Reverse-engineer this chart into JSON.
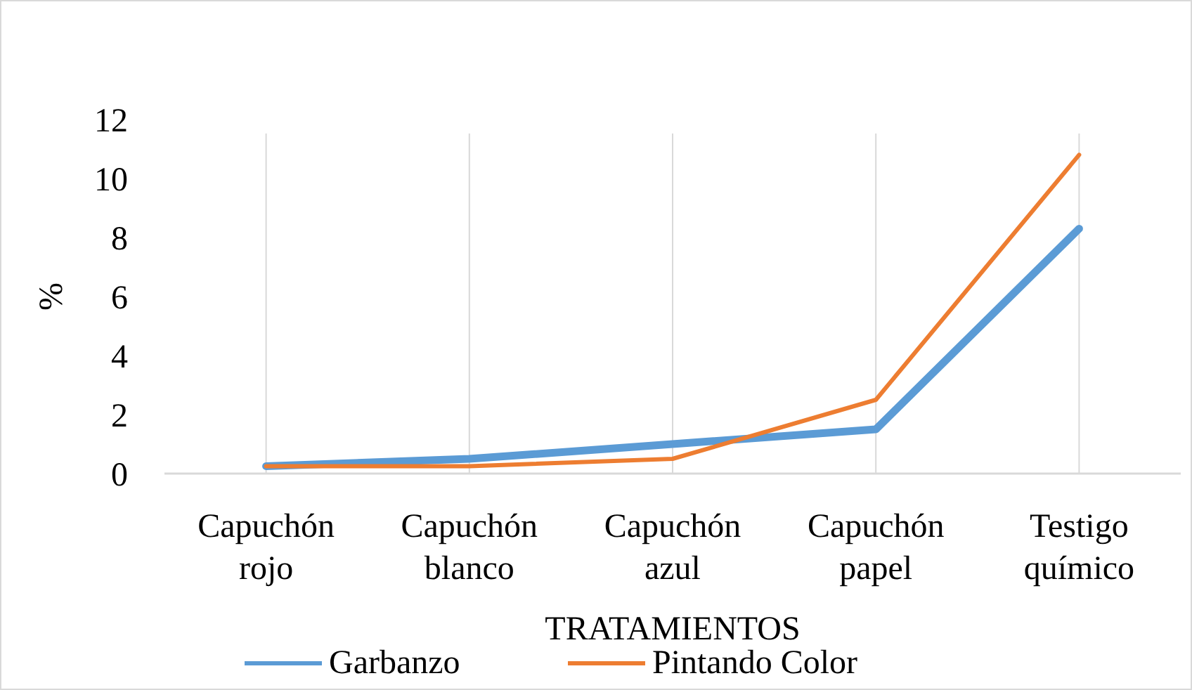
{
  "chart_data": {
    "type": "line",
    "xlabel": "TRATAMIENTOS",
    "ylabel": "%",
    "categories": [
      "Capuchón rojo",
      "Capuchón blanco",
      "Capuchón azul",
      "Capuchón papel",
      "Testigo químico"
    ],
    "series": [
      {
        "name": "Garbanzo",
        "color": "#5b9bd5",
        "values": [
          0.25,
          0.5,
          1.0,
          1.5,
          8.3
        ]
      },
      {
        "name": "Pintando Color",
        "color": "#ed7d31",
        "values": [
          0.25,
          0.25,
          0.5,
          2.5,
          10.8
        ]
      }
    ],
    "ylim": [
      0,
      12
    ],
    "yticks": [
      0,
      2,
      4,
      6,
      8,
      10,
      12
    ],
    "grid": "x",
    "legend": "bottom",
    "marker": "none",
    "line_style": "solid"
  }
}
